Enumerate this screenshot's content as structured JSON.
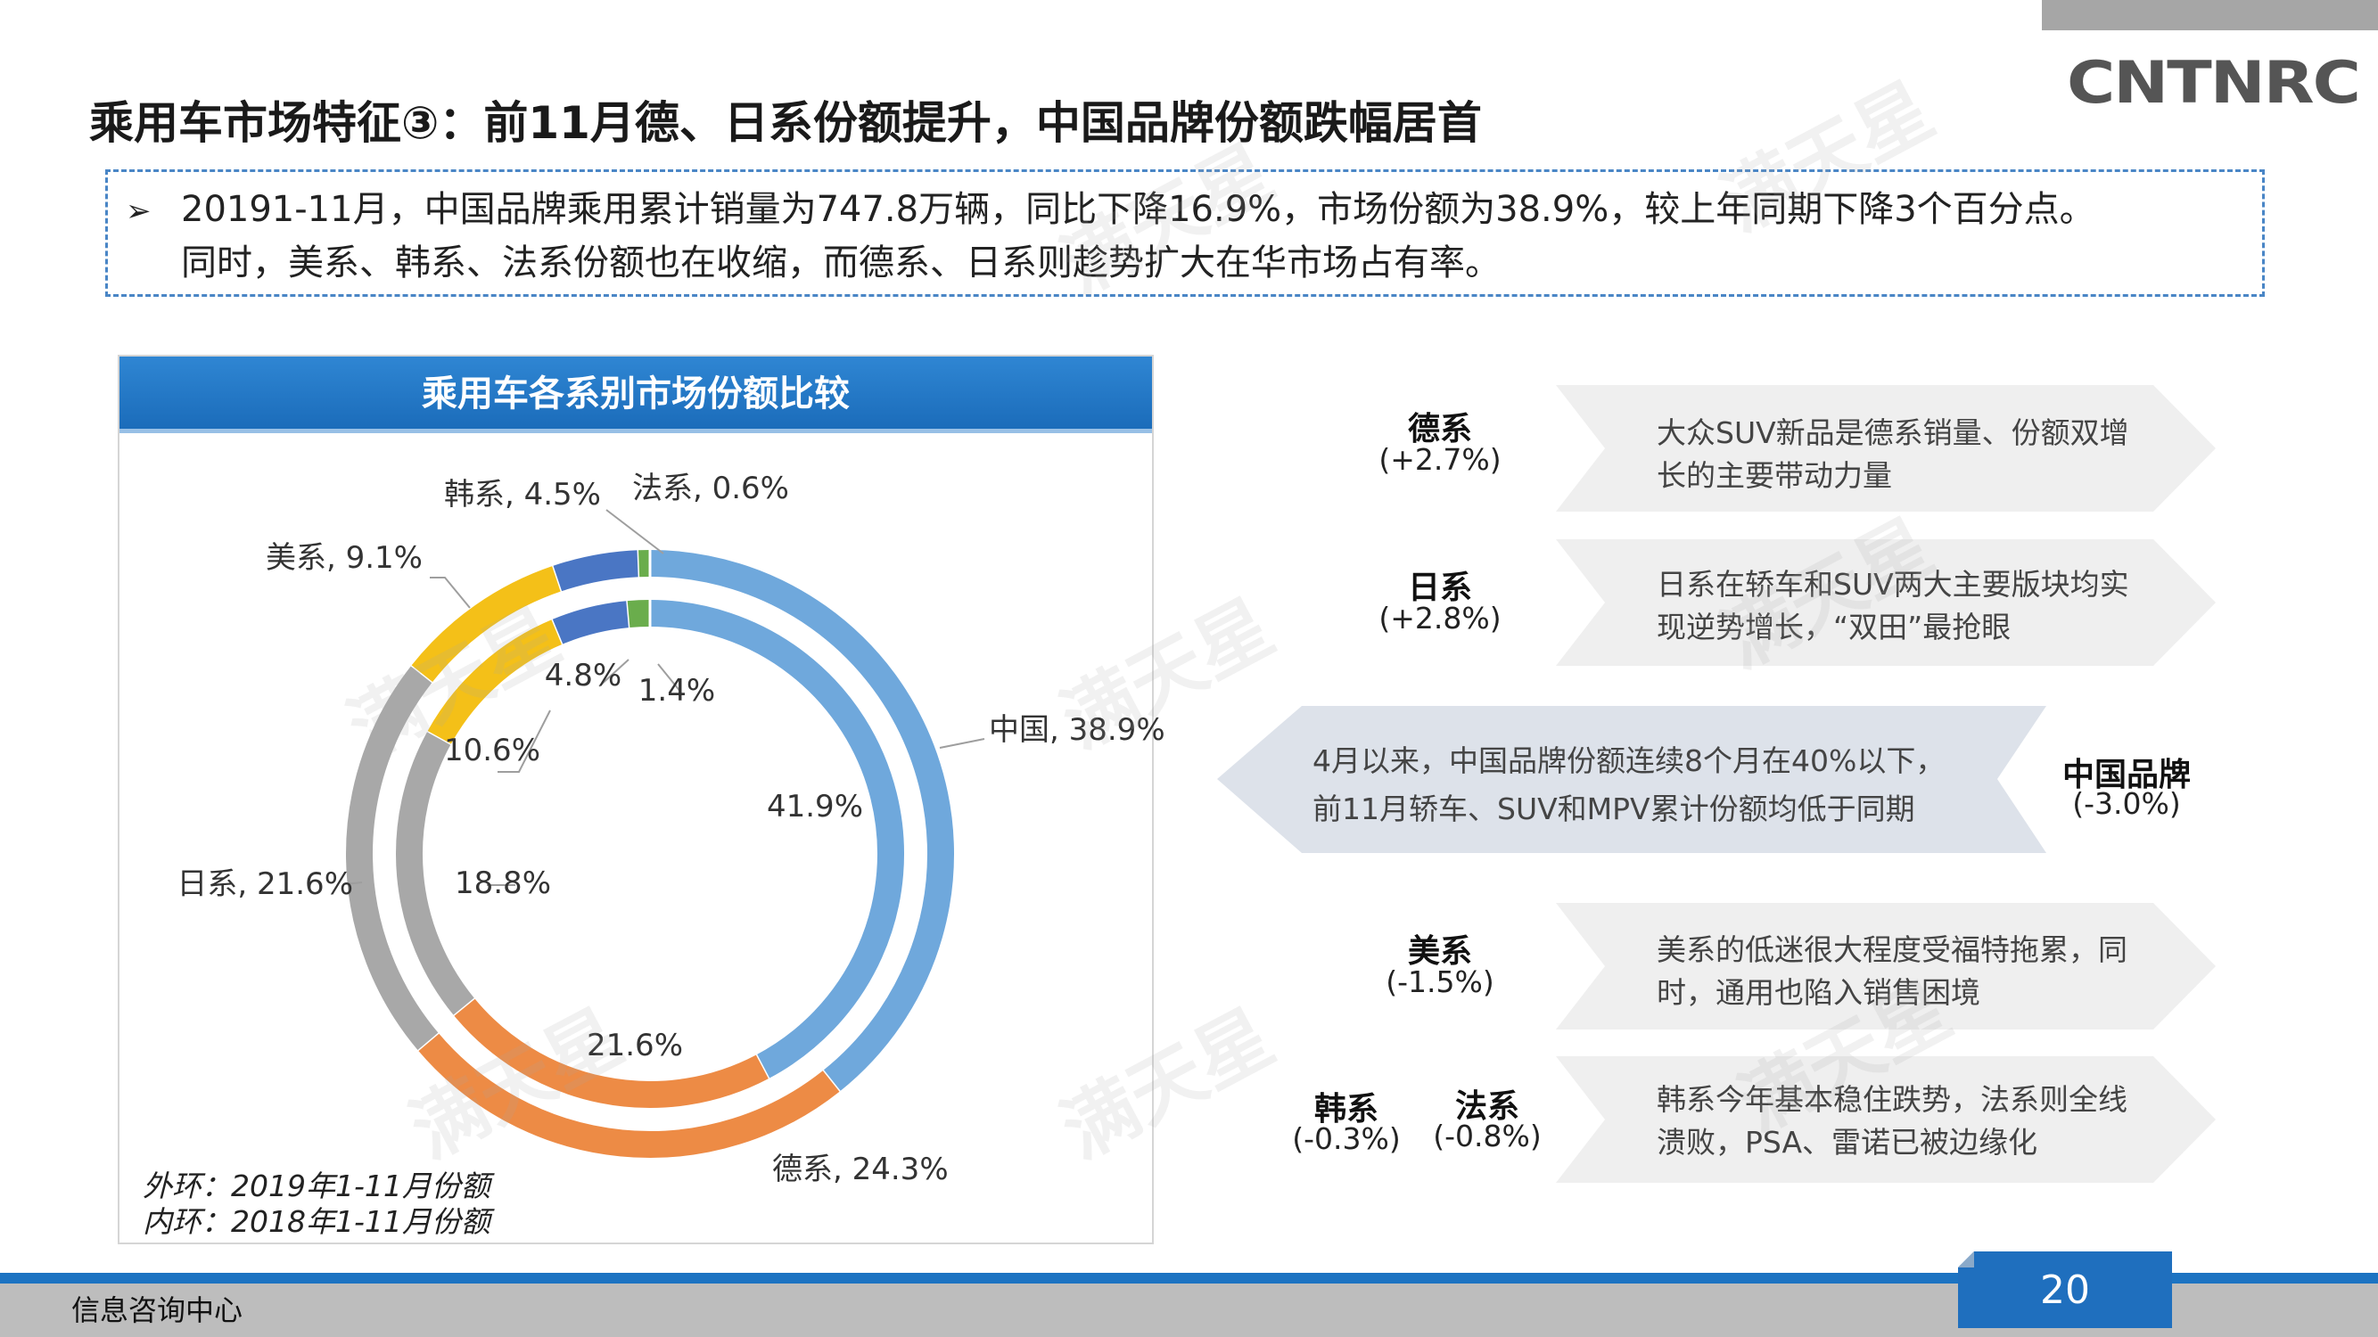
{
  "header": {
    "logo_text": "CNTNRC",
    "title": "乘用车市场特征③：前11月德、日系份额提升，中国品牌份额跌幅居首"
  },
  "summary": {
    "bullet": "➢",
    "line1": "20191-11月，中国品牌乘用累计销量为747.8万辆，同比下降16.9%，市场份额为38.9%，较上年同期下降3个百分点。",
    "line2": "同时，美系、韩系、法系份额也在收缩，而德系、日系则趁势扩大在华市场占有率。"
  },
  "watermark": {
    "text": "满天星"
  },
  "chart_data": {
    "type": "donut",
    "title": "乘用车各系别市场份额比较",
    "categories": [
      "中国",
      "德系",
      "日系",
      "美系",
      "韩系",
      "法系"
    ],
    "series": [
      {
        "name": "外环：2019年1-11月份额",
        "values": [
          38.9,
          24.3,
          21.6,
          9.1,
          4.5,
          0.6
        ],
        "labels": [
          "中国, 38.9%",
          "德系, 24.3%",
          "日系, 21.6%",
          "美系, 9.1%",
          "韩系, 4.5%",
          "法系, 0.6%"
        ]
      },
      {
        "name": "内环：2018年1-11月份额",
        "values": [
          41.9,
          21.6,
          18.8,
          10.6,
          4.8,
          1.4
        ],
        "labels": [
          "41.9%",
          "21.6%",
          "18.8%",
          "10.6%",
          "4.8%",
          "1.4%"
        ]
      }
    ],
    "colors": [
      "#6fa8dc",
      "#ed8b45",
      "#a8a8a8",
      "#f4c018",
      "#4a76c4",
      "#6aad4c"
    ],
    "notes": [
      "外环：2019年1-11月份额",
      "内环：2018年1-11月份额"
    ]
  },
  "commentary": [
    {
      "name": "德系",
      "change": "(+2.7%)",
      "lines": [
        "大众SUV新品是德系销量、份额双增",
        "长的主要带动力量"
      ]
    },
    {
      "name": "日系",
      "change": "(+2.8%)",
      "lines": [
        "日系在轿车和SUV两大主要版块均实",
        "现逆势增长，“双田”最抢眼"
      ]
    },
    {
      "name": "中国品牌",
      "change": "(-3.0%)",
      "lines": [
        "4月以来，中国品牌份额连续8个月在40%以下，",
        "前11月轿车、SUV和MPV累计份额均低于同期"
      ]
    },
    {
      "name": "美系",
      "change": "(-1.5%)",
      "lines": [
        "美系的低迷很大程度受福特拖累，同",
        "时，通用也陷入销售困境"
      ]
    },
    {
      "name": "韩系",
      "change": "(-0.3%)",
      "name2": "法系",
      "change2": "(-0.8%)",
      "lines": [
        "韩系今年基本稳住跌势，法系则全线",
        "溃败，PSA、雷诺已被边缘化"
      ]
    }
  ],
  "footer": {
    "label": "信息咨询中心",
    "page_number": "20"
  }
}
